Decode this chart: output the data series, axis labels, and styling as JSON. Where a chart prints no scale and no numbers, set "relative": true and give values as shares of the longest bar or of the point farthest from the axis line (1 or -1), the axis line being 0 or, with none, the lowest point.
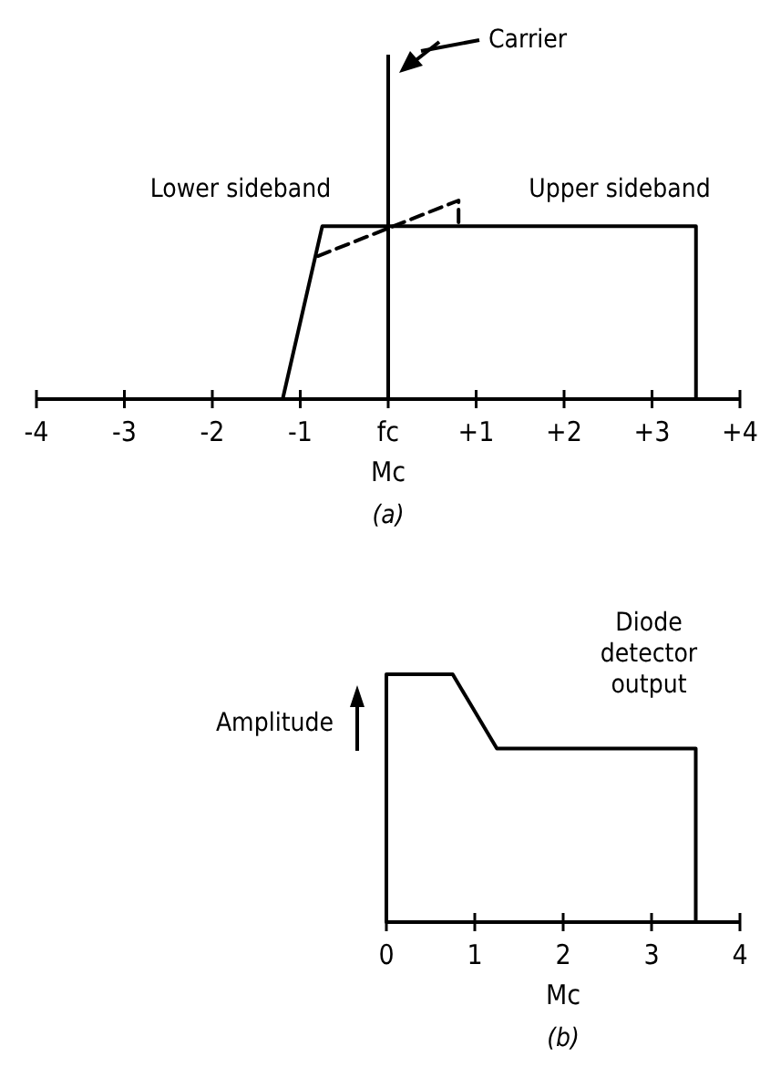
{
  "chart_data": [
    {
      "type": "line",
      "relative": true,
      "xlabel": "Mc",
      "xlim": [
        -4,
        4
      ],
      "xticks": [
        -4,
        -3,
        -2,
        -1,
        {
          "value": 0,
          "label": "fc"
        },
        {
          "value": 1,
          "label": "+1"
        },
        {
          "value": 2,
          "label": "+2"
        },
        {
          "value": 3,
          "label": "+3"
        },
        {
          "value": 4,
          "label": "+4"
        }
      ],
      "series": [
        {
          "color": "#000000",
          "x": [
            -1.2,
            -0.75,
            3.5,
            3.5
          ],
          "values": [
            0,
            0.87,
            0.87,
            0
          ]
        },
        {
          "color": "#000000",
          "line_style": "dashed",
          "x": [
            -0.8,
            0.8,
            0.8
          ],
          "values": [
            0.72,
            1,
            0.87
          ]
        }
      ],
      "ref_lines": [
        {
          "axis": "x",
          "value": 0,
          "label": "Carrier",
          "color": "#000000"
        }
      ],
      "annotations": [
        "Lower sideband",
        "Upper sideband",
        "(a)"
      ]
    },
    {
      "type": "line",
      "relative": true,
      "xlabel": "Mc",
      "ylabel": "Amplitude",
      "xlim": [
        0,
        4
      ],
      "xticks": [
        0,
        1,
        2,
        3,
        4
      ],
      "series": [
        {
          "color": "#000000",
          "x": [
            0,
            0,
            0.75,
            1.25,
            3.5,
            3.5
          ],
          "values": [
            0,
            1,
            1,
            0.7,
            0.7,
            0
          ]
        }
      ],
      "annotations": [
        "Diode detector output",
        "(b)"
      ]
    }
  ]
}
